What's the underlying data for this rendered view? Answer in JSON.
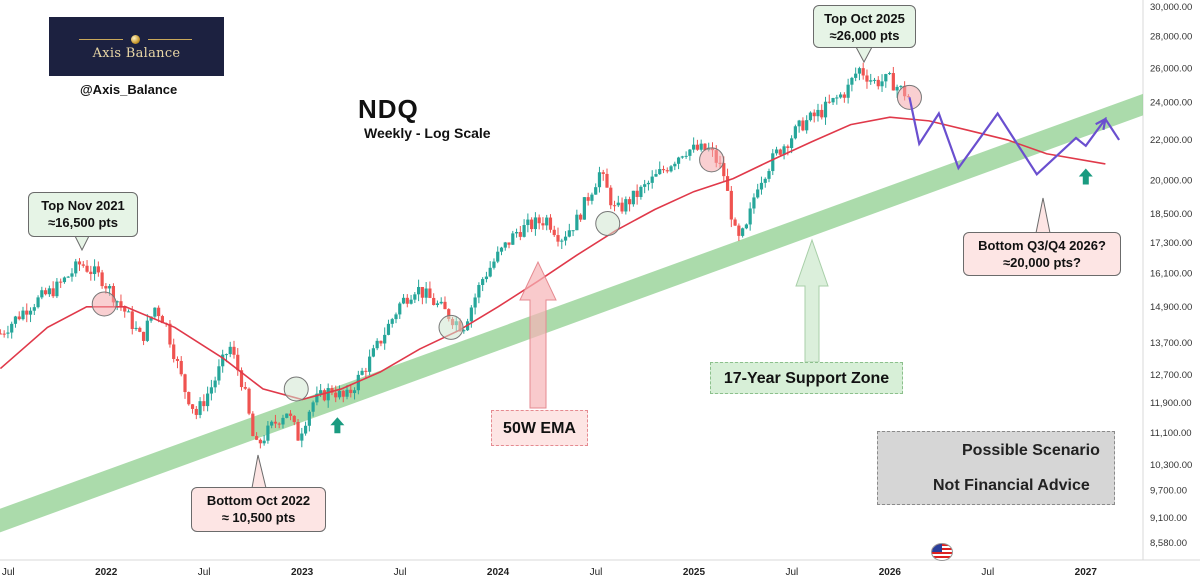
{
  "brand": {
    "logo_text": "Axis Balance",
    "handle": "@Axis_Balance",
    "colors": {
      "logo_bg": "#1c2140",
      "gold": "#c9a85a"
    }
  },
  "chart_title": "NDQ",
  "chart_subtitle": "Weekly - Log Scale",
  "annotations": {
    "top_2021": {
      "line1": "Top Nov 2021",
      "line2": "≈16,500 pts"
    },
    "bottom_2022": {
      "line1": "Bottom Oct 2022",
      "line2": "≈ 10,500 pts"
    },
    "top_2025": {
      "line1": "Top Oct 2025",
      "line2": "≈26,000 pts"
    },
    "bottom_2026": {
      "line1": "Bottom Q3/Q4 2026?",
      "line2": "≈20,000 pts?"
    },
    "ema_label": "50W EMA",
    "support_label": "17-Year Support Zone"
  },
  "legend": {
    "scenario": "Possible Scenario",
    "advice": "Not Financial Advice"
  },
  "colors": {
    "up_candle": "#26a69a",
    "down_candle": "#ef5350",
    "ema": "#e0394a",
    "support_fill": "#8fcf8f",
    "scenario": "#6a4fcf",
    "arrow_green": "#1a9b80"
  },
  "chart_data": {
    "type": "candlestick",
    "title": "NDQ",
    "subtitle": "Weekly - Log Scale",
    "y_scale": "log",
    "ylim": [
      8250,
      30500
    ],
    "y_ticks": [
      30000,
      28000,
      26000,
      24000,
      22000,
      20000,
      18500,
      17300,
      16100,
      14900,
      13700,
      12700,
      11900,
      11100,
      10300,
      9700,
      9100,
      8580
    ],
    "y_tick_labels": [
      "30,000.00",
      "28,000.00",
      "26,000.00",
      "24,000.00",
      "22,000.00",
      "20,000.00",
      "18,500.00",
      "17,300.00",
      "16,100.00",
      "14,900.00",
      "13,700.00",
      "12,700.00",
      "11,900.00",
      "11,100.00",
      "10,300.00",
      "9,700.00",
      "9,100.00",
      "8,580.00"
    ],
    "x_range": [
      2021.458,
      2027.292
    ],
    "x_ticks": [
      2021.5,
      2022.0,
      2022.5,
      2023.0,
      2023.5,
      2024.0,
      2024.5,
      2025.0,
      2025.5,
      2026.0,
      2026.5,
      2027.0
    ],
    "x_tick_labels": [
      "Jul",
      "2022",
      "Jul",
      "2023",
      "Jul",
      "2024",
      "Jul",
      "2025",
      "Jul",
      "2026",
      "Jul",
      "2027"
    ],
    "price_path": [
      [
        2021.46,
        14000
      ],
      [
        2021.6,
        14900
      ],
      [
        2021.75,
        15600
      ],
      [
        2021.87,
        16500
      ],
      [
        2021.98,
        15900
      ],
      [
        2022.1,
        14700
      ],
      [
        2022.18,
        13800
      ],
      [
        2022.25,
        14900
      ],
      [
        2022.3,
        14400
      ],
      [
        2022.4,
        12300
      ],
      [
        2022.46,
        11600
      ],
      [
        2022.55,
        12500
      ],
      [
        2022.63,
        13600
      ],
      [
        2022.7,
        12400
      ],
      [
        2022.76,
        10700
      ],
      [
        2022.85,
        11300
      ],
      [
        2022.92,
        11700
      ],
      [
        2022.98,
        11000
      ],
      [
        2023.05,
        11900
      ],
      [
        2023.15,
        12300
      ],
      [
        2023.22,
        12000
      ],
      [
        2023.35,
        13200
      ],
      [
        2023.5,
        15000
      ],
      [
        2023.58,
        15600
      ],
      [
        2023.7,
        14900
      ],
      [
        2023.82,
        14200
      ],
      [
        2023.92,
        15900
      ],
      [
        2024.0,
        16800
      ],
      [
        2024.1,
        17800
      ],
      [
        2024.25,
        18300
      ],
      [
        2024.32,
        17500
      ],
      [
        2024.4,
        18200
      ],
      [
        2024.52,
        20400
      ],
      [
        2024.6,
        18600
      ],
      [
        2024.7,
        19300
      ],
      [
        2024.82,
        20300
      ],
      [
        2024.95,
        21500
      ],
      [
        2025.08,
        21500
      ],
      [
        2025.15,
        20400
      ],
      [
        2025.22,
        17300
      ],
      [
        2025.27,
        17900
      ],
      [
        2025.32,
        19800
      ],
      [
        2025.42,
        21300
      ],
      [
        2025.55,
        22800
      ],
      [
        2025.65,
        23500
      ],
      [
        2025.78,
        24700
      ],
      [
        2025.84,
        26000
      ],
      [
        2025.92,
        25200
      ],
      [
        2026.0,
        25300
      ],
      [
        2026.1,
        24300
      ]
    ],
    "ema_50w": [
      [
        2021.46,
        12900
      ],
      [
        2021.7,
        14200
      ],
      [
        2021.9,
        14900
      ],
      [
        2022.1,
        14900
      ],
      [
        2022.35,
        14200
      ],
      [
        2022.6,
        13200
      ],
      [
        2022.8,
        12300
      ],
      [
        2023.0,
        12000
      ],
      [
        2023.2,
        12300
      ],
      [
        2023.4,
        12800
      ],
      [
        2023.6,
        13500
      ],
      [
        2023.8,
        14100
      ],
      [
        2024.0,
        14900
      ],
      [
        2024.2,
        15800
      ],
      [
        2024.4,
        16800
      ],
      [
        2024.6,
        17800
      ],
      [
        2024.8,
        18700
      ],
      [
        2025.0,
        19500
      ],
      [
        2025.2,
        20100
      ],
      [
        2025.4,
        21000
      ],
      [
        2025.6,
        21900
      ],
      [
        2025.8,
        22800
      ],
      [
        2026.0,
        23200
      ],
      [
        2026.2,
        23000
      ],
      [
        2026.4,
        22500
      ],
      [
        2026.6,
        22000
      ],
      [
        2026.8,
        21300
      ],
      [
        2027.1,
        20800
      ]
    ],
    "support_zone": {
      "lower": [
        [
          2021.458,
          8800
        ],
        [
          2027.292,
          23300
        ]
      ],
      "upper": [
        [
          2021.458,
          9300
        ],
        [
          2027.292,
          24500
        ]
      ]
    },
    "possible_scenario": [
      [
        2026.1,
        24300
      ],
      [
        2026.15,
        21800
      ],
      [
        2026.25,
        23400
      ],
      [
        2026.35,
        20600
      ],
      [
        2026.55,
        23400
      ],
      [
        2026.75,
        20300
      ],
      [
        2026.95,
        22100
      ],
      [
        2027.0,
        21700
      ],
      [
        2027.1,
        23100
      ],
      [
        2027.17,
        22000
      ]
    ],
    "highlight_circles": [
      [
        2021.99,
        15000
      ],
      [
        2022.97,
        12300
      ],
      [
        2023.76,
        14200
      ],
      [
        2024.56,
        18100
      ],
      [
        2025.09,
        21000
      ],
      [
        2026.1,
        24300
      ]
    ],
    "up_arrows": [
      [
        2023.18,
        11300
      ],
      [
        2027.0,
        20200
      ]
    ],
    "annotations": [
      "Top Nov 2021 ≈16,500 pts",
      "Bottom Oct 2022 ≈ 10,500 pts",
      "Top Oct 2025 ≈26,000 pts",
      "Bottom Q3/Q4 2026? ≈20,000 pts?",
      "50W EMA",
      "17-Year Support Zone"
    ],
    "legend": [
      "Possible Scenario",
      "Not Financial Advice"
    ]
  }
}
